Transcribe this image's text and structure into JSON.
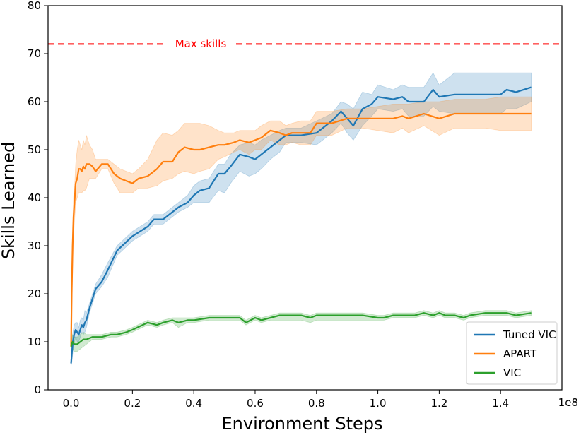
{
  "chart_data": {
    "type": "line",
    "title": "",
    "xlabel": "Environment Steps",
    "ylabel": "Skills Learned",
    "x_multiplier_label": "1e8",
    "xlim": [
      -0.075,
      1.6
    ],
    "ylim": [
      0,
      80
    ],
    "xticks": [
      0.0,
      0.2,
      0.4,
      0.6,
      0.8,
      1.0,
      1.2,
      1.4
    ],
    "xtick_labels": [
      "0.0",
      "0.2",
      "0.4",
      "0.6",
      "0.8",
      "1.0",
      "1.2",
      "1.4"
    ],
    "yticks": [
      0,
      10,
      20,
      30,
      40,
      50,
      60,
      70,
      80
    ],
    "ytick_labels": [
      "0",
      "10",
      "20",
      "30",
      "40",
      "50",
      "60",
      "70",
      "80"
    ],
    "grid": false,
    "legend_position": "lower-right",
    "reference_line": {
      "y": 72,
      "label": "Max skills",
      "color": "#ff0000",
      "style": "dashed"
    },
    "series": [
      {
        "name": "Tuned VIC",
        "color": "#1f77b4",
        "x": [
          0.0,
          0.003,
          0.006,
          0.01,
          0.015,
          0.02,
          0.025,
          0.03,
          0.035,
          0.04,
          0.045,
          0.05,
          0.06,
          0.07,
          0.08,
          0.1,
          0.12,
          0.15,
          0.2,
          0.25,
          0.27,
          0.3,
          0.35,
          0.38,
          0.4,
          0.42,
          0.45,
          0.48,
          0.5,
          0.52,
          0.55,
          0.58,
          0.6,
          0.62,
          0.65,
          0.68,
          0.7,
          0.75,
          0.8,
          0.85,
          0.88,
          0.9,
          0.92,
          0.95,
          0.98,
          1.0,
          1.05,
          1.08,
          1.1,
          1.15,
          1.18,
          1.2,
          1.25,
          1.3,
          1.35,
          1.4,
          1.42,
          1.45,
          1.5
        ],
        "y": [
          5.5,
          8.0,
          10.0,
          11.5,
          12.5,
          12.0,
          11.5,
          12.5,
          13.5,
          13.0,
          14.0,
          14.5,
          17.0,
          19.0,
          21.0,
          22.5,
          25.0,
          29.0,
          32.0,
          34.0,
          35.5,
          35.5,
          38.0,
          39.0,
          40.5,
          41.5,
          42.0,
          45.0,
          45.0,
          46.5,
          49.0,
          48.5,
          48.0,
          49.0,
          50.5,
          52.0,
          53.0,
          53.0,
          53.5,
          56.0,
          58.0,
          56.5,
          55.0,
          58.5,
          59.5,
          61.0,
          60.5,
          61.0,
          60.0,
          60.0,
          62.5,
          61.0,
          61.5,
          61.5,
          61.5,
          61.5,
          62.5,
          62.0,
          63.0
        ],
        "upper": [
          6.0,
          10.0,
          12.0,
          13.5,
          14.0,
          14.0,
          13.0,
          14.5,
          15.0,
          14.5,
          16.5,
          16.0,
          18.0,
          20.0,
          22.0,
          24.0,
          26.5,
          30.0,
          33.0,
          35.0,
          36.5,
          36.5,
          39.0,
          40.5,
          42.5,
          43.5,
          44.0,
          47.0,
          47.0,
          49.0,
          51.0,
          51.5,
          51.0,
          52.0,
          53.0,
          54.0,
          54.5,
          54.5,
          56.0,
          57.5,
          60.0,
          59.5,
          58.5,
          62.0,
          61.5,
          63.5,
          62.5,
          63.5,
          63.0,
          63.0,
          66.0,
          63.5,
          66.0,
          66.0,
          66.0,
          66.0,
          66.0,
          66.0,
          66.0
        ],
        "lower": [
          5.0,
          6.0,
          8.0,
          9.5,
          11.0,
          10.0,
          10.0,
          11.0,
          12.0,
          11.5,
          12.0,
          13.0,
          16.0,
          18.0,
          20.0,
          21.5,
          23.5,
          28.0,
          31.0,
          33.0,
          34.5,
          34.5,
          37.0,
          38.0,
          39.0,
          39.0,
          39.0,
          41.5,
          41.0,
          43.0,
          45.5,
          44.5,
          45.0,
          46.0,
          48.0,
          49.5,
          51.5,
          51.5,
          51.0,
          53.5,
          55.5,
          53.5,
          52.0,
          55.0,
          57.0,
          58.5,
          58.0,
          58.5,
          57.0,
          57.0,
          59.0,
          58.0,
          57.5,
          57.5,
          57.5,
          57.5,
          58.5,
          58.5,
          60.0
        ]
      },
      {
        "name": "APART",
        "color": "#ff7f0e",
        "x": [
          0.0,
          0.002,
          0.005,
          0.008,
          0.012,
          0.015,
          0.02,
          0.025,
          0.03,
          0.035,
          0.04,
          0.045,
          0.05,
          0.06,
          0.07,
          0.08,
          0.1,
          0.12,
          0.14,
          0.16,
          0.2,
          0.22,
          0.25,
          0.28,
          0.3,
          0.33,
          0.35,
          0.37,
          0.4,
          0.42,
          0.45,
          0.48,
          0.5,
          0.53,
          0.55,
          0.58,
          0.6,
          0.62,
          0.65,
          0.68,
          0.7,
          0.72,
          0.75,
          0.78,
          0.8,
          0.85,
          0.9,
          0.95,
          1.0,
          1.05,
          1.08,
          1.1,
          1.15,
          1.2,
          1.25,
          1.3,
          1.35,
          1.4,
          1.45,
          1.5
        ],
        "y": [
          9.0,
          20.0,
          30.0,
          36.0,
          40.0,
          43.0,
          44.0,
          46.0,
          46.0,
          45.5,
          46.5,
          46.0,
          47.0,
          47.0,
          46.5,
          45.5,
          47.0,
          47.0,
          45.0,
          44.0,
          43.0,
          44.0,
          44.5,
          46.0,
          47.5,
          47.5,
          49.5,
          50.5,
          50.0,
          50.0,
          50.5,
          51.0,
          51.0,
          51.5,
          52.0,
          51.5,
          52.0,
          52.5,
          54.0,
          53.5,
          53.0,
          53.5,
          53.5,
          53.5,
          55.5,
          55.5,
          56.5,
          56.5,
          56.5,
          56.5,
          57.0,
          56.5,
          57.5,
          56.5,
          57.5,
          57.5,
          57.5,
          57.5,
          57.5,
          57.5
        ],
        "upper": [
          10.0,
          24.0,
          34.0,
          40.0,
          43.0,
          47.0,
          50.0,
          52.0,
          51.0,
          50.0,
          52.0,
          51.0,
          53.0,
          51.0,
          50.0,
          48.0,
          48.0,
          48.0,
          47.0,
          46.0,
          45.0,
          46.0,
          48.0,
          52.0,
          53.5,
          53.0,
          54.0,
          55.5,
          55.5,
          55.5,
          55.0,
          54.0,
          53.5,
          53.5,
          54.0,
          54.0,
          54.0,
          55.0,
          56.0,
          56.0,
          55.0,
          55.5,
          56.0,
          56.0,
          58.0,
          58.0,
          58.5,
          58.5,
          59.0,
          59.5,
          59.5,
          59.5,
          60.0,
          60.0,
          60.5,
          60.5,
          60.5,
          61.0,
          61.0,
          61.0
        ],
        "lower": [
          8.0,
          16.0,
          26.0,
          32.0,
          36.0,
          39.0,
          40.0,
          41.0,
          41.0,
          41.0,
          41.5,
          41.5,
          42.0,
          44.0,
          44.0,
          44.0,
          46.0,
          46.0,
          43.0,
          41.0,
          41.0,
          42.0,
          42.0,
          42.5,
          43.5,
          44.0,
          45.0,
          45.5,
          45.0,
          45.5,
          46.0,
          48.0,
          48.5,
          49.5,
          50.0,
          49.0,
          50.0,
          50.0,
          52.0,
          51.0,
          51.0,
          51.5,
          51.0,
          51.0,
          53.0,
          53.0,
          54.5,
          54.5,
          54.0,
          53.5,
          54.5,
          53.5,
          55.0,
          53.0,
          54.5,
          54.5,
          54.5,
          54.0,
          54.0,
          54.0
        ]
      },
      {
        "name": "VIC",
        "color": "#2ca02c",
        "x": [
          0.0,
          0.005,
          0.01,
          0.02,
          0.03,
          0.04,
          0.05,
          0.07,
          0.1,
          0.13,
          0.15,
          0.18,
          0.2,
          0.25,
          0.28,
          0.3,
          0.33,
          0.35,
          0.38,
          0.4,
          0.45,
          0.5,
          0.55,
          0.57,
          0.6,
          0.62,
          0.65,
          0.68,
          0.7,
          0.75,
          0.78,
          0.8,
          0.85,
          0.9,
          0.95,
          1.0,
          1.02,
          1.05,
          1.1,
          1.12,
          1.15,
          1.18,
          1.2,
          1.22,
          1.25,
          1.28,
          1.3,
          1.35,
          1.4,
          1.42,
          1.45,
          1.5
        ],
        "y": [
          9.0,
          10.0,
          9.5,
          9.5,
          10.0,
          10.5,
          10.5,
          11.0,
          11.0,
          11.5,
          11.5,
          12.0,
          12.5,
          14.0,
          13.5,
          14.0,
          14.5,
          14.0,
          14.5,
          14.5,
          15.0,
          15.0,
          15.0,
          14.0,
          15.0,
          14.5,
          15.0,
          15.5,
          15.5,
          15.5,
          15.0,
          15.5,
          15.5,
          15.5,
          15.5,
          15.0,
          15.0,
          15.5,
          15.5,
          15.5,
          16.0,
          15.5,
          16.0,
          15.5,
          15.5,
          15.0,
          15.5,
          16.0,
          16.0,
          16.0,
          15.5,
          16.0
        ],
        "upper": [
          10.0,
          11.5,
          11.0,
          11.0,
          11.5,
          12.0,
          11.5,
          11.5,
          11.5,
          12.0,
          12.0,
          12.5,
          13.0,
          14.5,
          14.0,
          14.5,
          15.0,
          15.0,
          15.0,
          15.0,
          15.5,
          15.5,
          15.5,
          14.5,
          15.5,
          15.0,
          15.5,
          16.0,
          16.0,
          16.0,
          15.5,
          16.0,
          16.0,
          16.0,
          16.0,
          15.5,
          15.5,
          16.0,
          16.0,
          16.0,
          16.5,
          16.0,
          16.5,
          16.0,
          16.0,
          15.5,
          16.0,
          16.5,
          16.5,
          16.5,
          16.0,
          16.5
        ],
        "lower": [
          8.0,
          8.5,
          8.0,
          8.0,
          8.5,
          9.0,
          9.5,
          10.5,
          10.5,
          11.0,
          11.0,
          11.5,
          12.0,
          13.5,
          13.0,
          13.5,
          14.0,
          13.0,
          14.0,
          14.0,
          14.5,
          14.5,
          14.5,
          13.5,
          14.5,
          14.0,
          14.5,
          14.5,
          14.5,
          14.5,
          14.0,
          14.5,
          14.5,
          14.5,
          14.5,
          14.5,
          14.5,
          15.0,
          15.0,
          15.0,
          15.5,
          15.0,
          15.5,
          15.0,
          15.0,
          14.5,
          15.0,
          15.5,
          15.5,
          15.5,
          15.0,
          15.5
        ]
      }
    ]
  }
}
